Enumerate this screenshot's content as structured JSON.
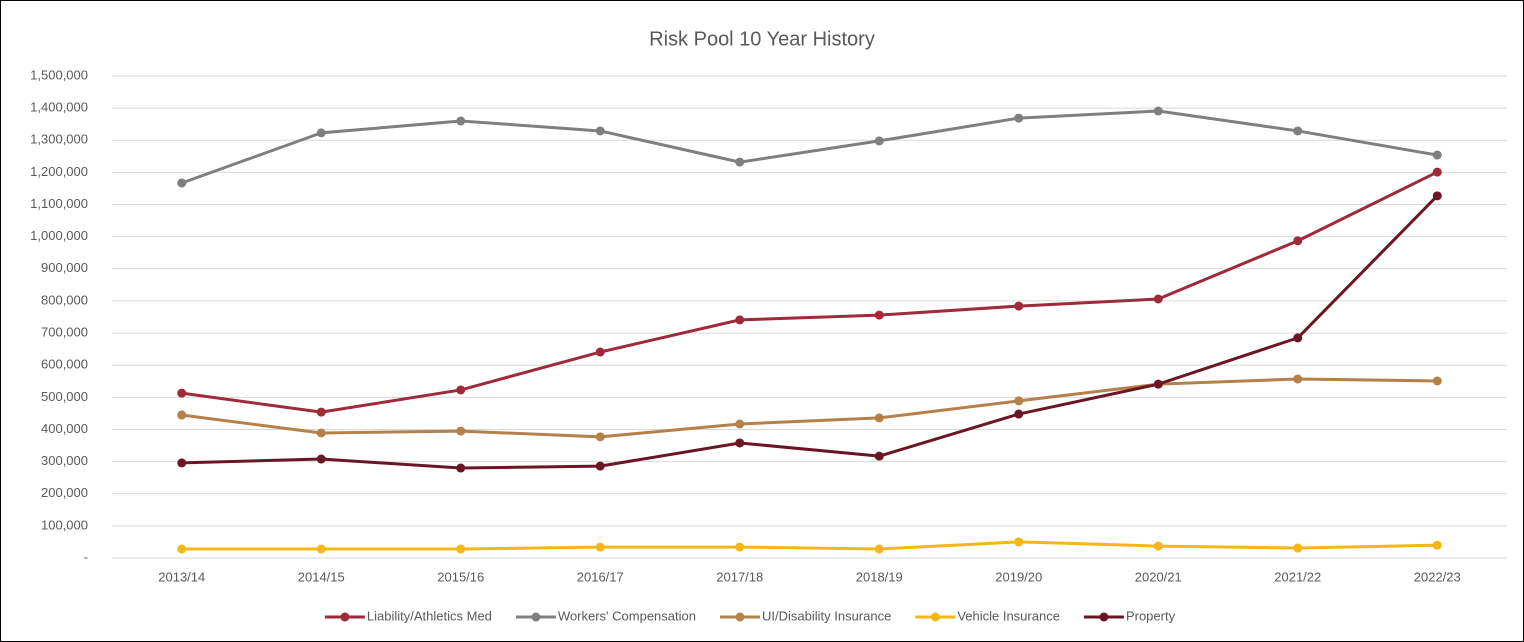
{
  "chart_data": {
    "type": "line",
    "title": "Risk Pool 10 Year History",
    "categories": [
      "2013/14",
      "2014/15",
      "2015/16",
      "2016/17",
      "2017/18",
      "2018/19",
      "2019/20",
      "2020/21",
      "2021/22",
      "2022/23"
    ],
    "series": [
      {
        "name": "Liability/Athletics Med",
        "color": "#9e2a3a",
        "values": [
          513000,
          454000,
          523000,
          641000,
          741000,
          756000,
          784000,
          806000,
          987000,
          1201000
        ]
      },
      {
        "name": "Workers' Compensation",
        "color": "#7f7f7f",
        "values": [
          1167000,
          1323000,
          1360000,
          1329000,
          1232000,
          1298000,
          1369000,
          1391000,
          1329000,
          1254000
        ]
      },
      {
        "name": "UI/Disability Insurance",
        "color": "#b5804a",
        "values": [
          445000,
          389000,
          395000,
          377000,
          417000,
          436000,
          489000,
          541000,
          557000,
          551000
        ]
      },
      {
        "name": "Vehicle Insurance",
        "color": "#f5b617",
        "values": [
          28000,
          28000,
          28000,
          34000,
          34000,
          28000,
          50000,
          37000,
          31000,
          40000
        ]
      },
      {
        "name": "Property",
        "color": "#6b1624",
        "values": [
          296000,
          308000,
          280000,
          286000,
          358000,
          317000,
          448000,
          541000,
          685000,
          1127000
        ]
      }
    ],
    "ylim": [
      0,
      1500000
    ],
    "yticks": [
      {
        "value": 0,
        "label": "-"
      },
      {
        "value": 100000,
        "label": "100,000"
      },
      {
        "value": 200000,
        "label": "200,000"
      },
      {
        "value": 300000,
        "label": "300,000"
      },
      {
        "value": 400000,
        "label": "400,000"
      },
      {
        "value": 500000,
        "label": "500,000"
      },
      {
        "value": 600000,
        "label": "600,000"
      },
      {
        "value": 700000,
        "label": "700,000"
      },
      {
        "value": 800000,
        "label": "800,000"
      },
      {
        "value": 900000,
        "label": "900,000"
      },
      {
        "value": 1000000,
        "label": "1,000,000"
      },
      {
        "value": 1100000,
        "label": "1,100,000"
      },
      {
        "value": 1200000,
        "label": "1,200,000"
      },
      {
        "value": 1300000,
        "label": "1,300,000"
      },
      {
        "value": 1400000,
        "label": "1,400,000"
      },
      {
        "value": 1500000,
        "label": "1,500,000"
      }
    ],
    "grid": true,
    "legend": "bottom"
  }
}
